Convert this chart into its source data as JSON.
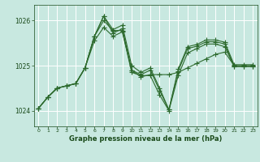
{
  "bg_color": "#c8e8e0",
  "grid_color": "#ffffff",
  "line_color_main": "#2d6a2d",
  "xlabel": "Graphe pression niveau de la mer (hPa)",
  "xlabel_color": "#1a4a1a",
  "tick_color": "#1a4a1a",
  "ylim": [
    1023.65,
    1026.35
  ],
  "xlim": [
    -0.5,
    23.5
  ],
  "yticks": [
    1024,
    1025,
    1026
  ],
  "xticks": [
    0,
    1,
    2,
    3,
    4,
    5,
    6,
    7,
    8,
    9,
    10,
    11,
    12,
    13,
    14,
    15,
    16,
    17,
    18,
    19,
    20,
    21,
    22,
    23
  ],
  "series": [
    [
      1024.05,
      1024.3,
      1024.5,
      1024.55,
      1024.6,
      1024.95,
      1025.55,
      1025.85,
      1025.65,
      1025.75,
      1024.9,
      1024.75,
      1024.8,
      1024.8,
      1024.8,
      1024.85,
      1024.95,
      1025.05,
      1025.15,
      1025.25,
      1025.3,
      1025.0,
      1025.0,
      1025.0
    ],
    [
      1024.05,
      1024.3,
      1024.5,
      1024.55,
      1024.6,
      1024.95,
      1025.65,
      1026.0,
      1025.78,
      1025.78,
      1024.85,
      1024.78,
      1024.78,
      1024.35,
      1024.0,
      1024.78,
      1025.28,
      1025.38,
      1025.48,
      1025.48,
      1025.42,
      1024.98,
      1024.98,
      1024.98
    ],
    [
      1024.05,
      1024.3,
      1024.5,
      1024.55,
      1024.6,
      1024.95,
      1025.65,
      1026.1,
      1025.72,
      1025.82,
      1024.9,
      1024.8,
      1024.9,
      1024.45,
      1024.02,
      1024.88,
      1025.38,
      1025.43,
      1025.53,
      1025.53,
      1025.48,
      1024.98,
      1024.98,
      1024.98
    ],
    [
      1024.05,
      1024.3,
      1024.5,
      1024.55,
      1024.6,
      1024.95,
      1025.65,
      1026.1,
      1025.8,
      1025.9,
      1025.0,
      1024.85,
      1024.95,
      1024.5,
      1024.02,
      1024.92,
      1025.42,
      1025.47,
      1025.57,
      1025.57,
      1025.52,
      1025.02,
      1025.02,
      1025.02
    ]
  ],
  "marker": "+",
  "markersize": 4,
  "linewidth": 0.8
}
